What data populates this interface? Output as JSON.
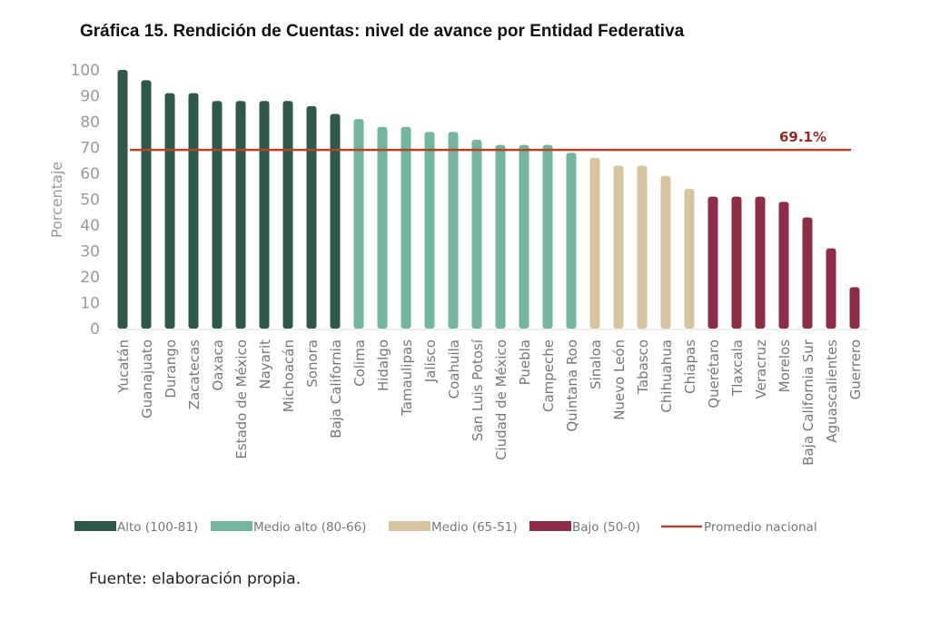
{
  "chart_data": {
    "type": "bar",
    "title": "Gráfica 15. Rendición de Cuentas: nivel de avance por Entidad Federativa",
    "ylabel": "Porcentaje",
    "ylim": [
      0,
      100
    ],
    "yticks": [
      0,
      10,
      20,
      30,
      40,
      50,
      60,
      70,
      80,
      90,
      100
    ],
    "categories": [
      "Yucatán",
      "Guanajuato",
      "Durango",
      "Zacatecas",
      "Oaxaca",
      "Estado de México",
      "Nayarit",
      "Michoacán",
      "Sonora",
      "Baja California",
      "Colima",
      "Hidalgo",
      "Tamaulipas",
      "Jalisco",
      "Coahuila",
      "San Luis Potosí",
      "Ciudad de México",
      "Puebla",
      "Campeche",
      "Quintana Roo",
      "Sinaloa",
      "Nuevo León",
      "Tabasco",
      "Chihuahua",
      "Chiapas",
      "Querétaro",
      "Tlaxcala",
      "Veracruz",
      "Morelos",
      "Baja California Sur",
      "Aguascalientes",
      "Guerrero"
    ],
    "values": [
      100,
      96,
      91,
      91,
      88,
      88,
      88,
      88,
      86,
      83,
      81,
      78,
      78,
      76,
      76,
      73,
      71,
      71,
      71,
      68,
      66,
      63,
      63,
      59,
      54,
      51,
      51,
      51,
      49,
      43,
      31,
      16
    ],
    "groups": [
      0,
      0,
      0,
      0,
      0,
      0,
      0,
      0,
      0,
      0,
      1,
      1,
      1,
      1,
      1,
      1,
      1,
      1,
      1,
      1,
      2,
      2,
      2,
      2,
      2,
      3,
      3,
      3,
      3,
      3,
      3,
      3
    ],
    "series": [
      {
        "name": "Alto (100-81)",
        "color": "#2f5a4a"
      },
      {
        "name": "Medio alto (80-66)",
        "color": "#74b5a0"
      },
      {
        "name": "Medio (65-51)",
        "color": "#d5c49f"
      },
      {
        "name": "Bajo (50-0)",
        "color": "#8e2d48"
      }
    ],
    "reference_line": {
      "name": "Promedio nacional",
      "value": 69.1,
      "label": "69.1%",
      "color": "#b5432a",
      "label_color": "#9b2a25"
    },
    "legend": "bottom",
    "grid": false
  },
  "source": "Fuente: elaboración propia."
}
